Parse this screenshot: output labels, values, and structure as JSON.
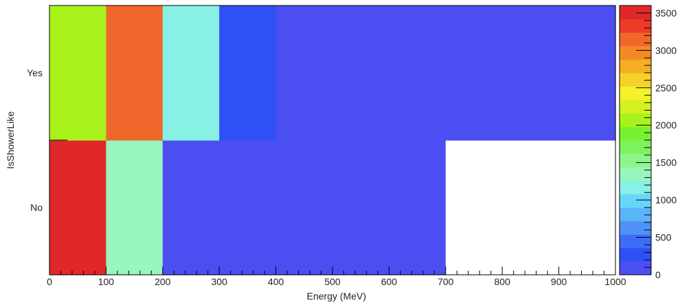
{
  "chart_data": {
    "type": "heatmap",
    "title": "",
    "xlabel": "Energy (MeV)",
    "ylabel": "IsShowerLike",
    "xlim": [
      0,
      1000
    ],
    "x_ticks": [
      "0",
      "100",
      "200",
      "300",
      "400",
      "500",
      "600",
      "700",
      "800",
      "900",
      "1000"
    ],
    "y_categories": [
      "No",
      "Yes"
    ],
    "x_bins": [
      [
        0,
        100
      ],
      [
        100,
        200
      ],
      [
        200,
        300
      ],
      [
        300,
        400
      ],
      [
        400,
        500
      ],
      [
        500,
        600
      ],
      [
        600,
        700
      ],
      [
        700,
        800
      ],
      [
        800,
        900
      ],
      [
        900,
        1000
      ]
    ],
    "values": {
      "Yes": [
        2000,
        3200,
        1200,
        300,
        10,
        10,
        10,
        10,
        10,
        10
      ],
      "No": [
        3600,
        1400,
        50,
        50,
        50,
        50,
        50,
        0,
        0,
        0
      ]
    },
    "zlim": [
      0,
      3600
    ],
    "z_ticks": [
      "0",
      "500",
      "1000",
      "1500",
      "2000",
      "2500",
      "3000",
      "3500"
    ],
    "palette": [
      "#4b4ef0",
      "#2f50f5",
      "#3f6cf7",
      "#4f92f7",
      "#5ab5f7",
      "#66d7f9",
      "#86f1e4",
      "#98f5bd",
      "#8ef58a",
      "#7cf35b",
      "#7af032",
      "#a8f21c",
      "#d4f21f",
      "#f4f12c",
      "#f5d12a",
      "#f5ad23",
      "#f38a22",
      "#f0672b",
      "#ee3b27",
      "#e0282a"
    ],
    "empty_color": "#ffffff",
    "grid": false,
    "legend": "color scale on the right"
  }
}
